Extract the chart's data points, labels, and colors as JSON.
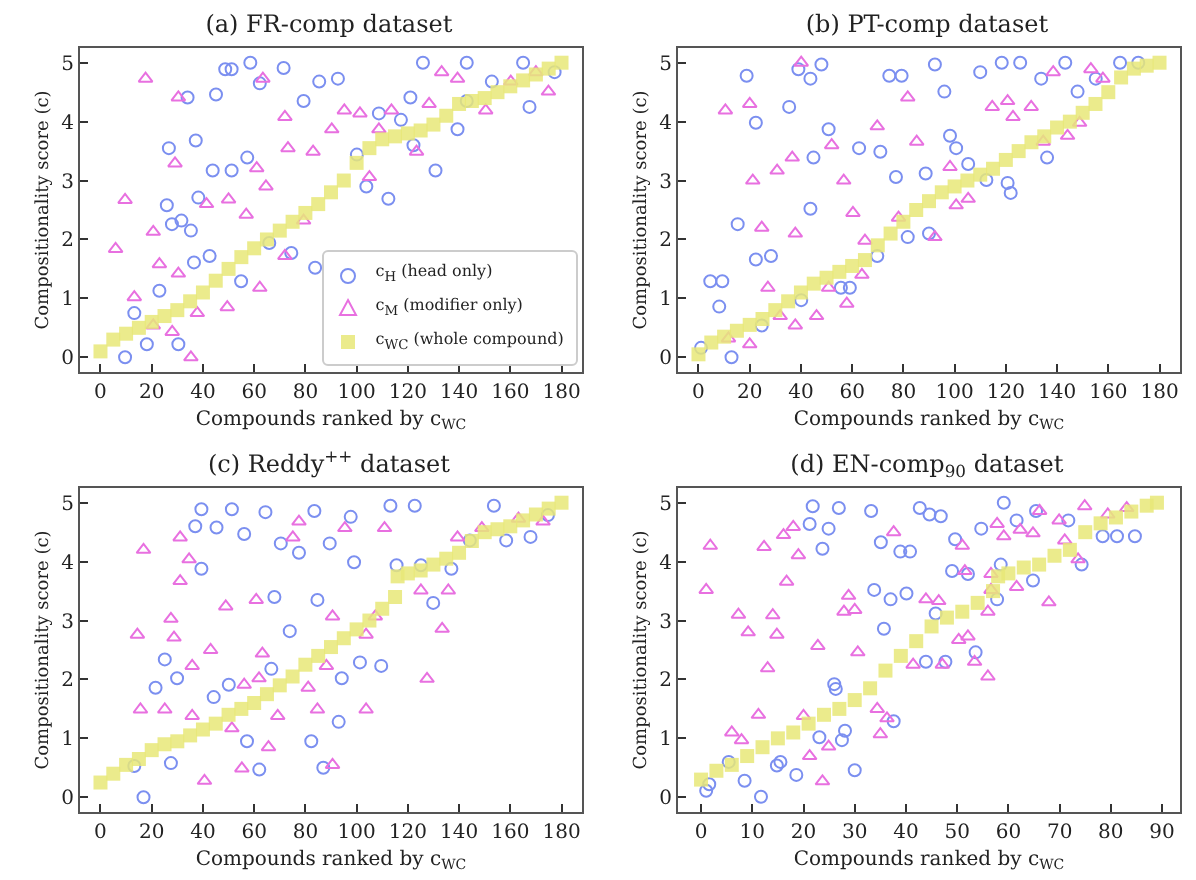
{
  "chart_data": [
    {
      "type": "scatter",
      "title": "(a) FR-comp dataset",
      "xlabel": "Compounds ranked by c$_{WC}$",
      "ylabel": "Compositionality score (c)",
      "xlim": [
        -8,
        188
      ],
      "ylim": [
        -0.25,
        5.25
      ],
      "xticks": [
        0,
        20,
        40,
        60,
        80,
        100,
        120,
        140,
        160,
        180
      ],
      "yticks": [
        0,
        1,
        2,
        3,
        4,
        5
      ],
      "grid": false,
      "legend": "bottom right",
      "series": [
        {
          "name": "c$_{H}$ (head only)",
          "color": "#7b8ff0",
          "marker": "circle",
          "x": [
            48.7,
            51.2,
            58.5,
            62.2,
            71.5,
            79.3,
            85.4,
            92.7,
            34.0,
            45.1,
            26.7,
            37.2,
            43.8,
            51.2,
            57.3,
            25.9,
            38.2,
            27.9,
            31.6,
            35.3,
            23.0,
            36.5,
            42.6,
            65.9,
            74.5,
            83.8,
            18.1,
            9.6,
            13.2,
            30.4,
            54.9,
            108.7,
            117.3,
            122.2,
            130.8,
            112.4,
            103.8,
            100.1,
            143.0,
            152.8,
            167.5,
            177.3,
            165.0,
            143.0,
            125.9,
            139.4,
            121.0
          ],
          "values": [
            4.89,
            4.89,
            5.0,
            4.65,
            4.91,
            4.35,
            4.68,
            4.73,
            4.41,
            4.46,
            3.55,
            3.68,
            3.17,
            3.17,
            3.39,
            2.58,
            2.71,
            2.26,
            2.32,
            2.15,
            1.13,
            1.61,
            1.72,
            1.94,
            1.77,
            1.52,
            0.22,
            0.0,
            0.75,
            0.22,
            1.29,
            4.14,
            4.03,
            3.6,
            3.17,
            2.69,
            2.9,
            3.44,
            4.35,
            4.68,
            4.25,
            4.84,
            5.0,
            5.0,
            5.0,
            3.87,
            4.41
          ]
        },
        {
          "name": "c$_{M}$ (modifier only)",
          "color": "#e870e0",
          "marker": "triangle",
          "x": [
            17.6,
            30.4,
            29.1,
            9.6,
            20.6,
            5.9,
            23.0,
            30.4,
            41.4,
            50.0,
            61.0,
            63.4,
            72.0,
            73.2,
            64.6,
            56.9,
            49.5,
            37.8,
            28.0,
            13.2,
            62.2,
            72.0,
            79.3,
            83.0,
            90.3,
            95.2,
            101.3,
            105.0,
            108.7,
            113.6,
            123.4,
            128.3,
            133.2,
            139.4,
            150.4,
            160.2,
            170.0,
            174.9,
            35.3,
            20.6
          ],
          "values": [
            4.73,
            4.41,
            3.29,
            2.67,
            2.13,
            1.84,
            1.58,
            1.42,
            2.6,
            2.68,
            3.21,
            4.73,
            4.08,
            3.55,
            2.9,
            2.42,
            0.85,
            0.75,
            0.43,
            1.02,
            1.18,
            1.72,
            2.32,
            3.49,
            3.87,
            4.19,
            4.14,
            3.06,
            3.87,
            4.19,
            3.49,
            4.3,
            4.84,
            4.73,
            4.19,
            4.68,
            4.84,
            4.51,
            0.0,
            0.54
          ]
        },
        {
          "name": "c$_{WC}$ (whole compound)",
          "color": "#e8e878",
          "marker": "square",
          "x": [
            0,
            5,
            10,
            15,
            20,
            25,
            30,
            35,
            40,
            45,
            50,
            55,
            60,
            65,
            70,
            75,
            80,
            85,
            90,
            95,
            100,
            105,
            110,
            115,
            120,
            125,
            130,
            135,
            140,
            145,
            150,
            155,
            160,
            165,
            170,
            175,
            180
          ],
          "values": [
            0.1,
            0.3,
            0.4,
            0.5,
            0.6,
            0.7,
            0.8,
            0.95,
            1.1,
            1.3,
            1.5,
            1.7,
            1.85,
            2.0,
            2.15,
            2.3,
            2.45,
            2.6,
            2.8,
            3.0,
            3.3,
            3.55,
            3.7,
            3.75,
            3.8,
            3.85,
            3.95,
            4.1,
            4.3,
            4.35,
            4.4,
            4.5,
            4.6,
            4.7,
            4.8,
            4.9,
            5.0
          ]
        }
      ]
    },
    {
      "type": "scatter",
      "title": "(b) PT-comp dataset",
      "xlabel": "Compounds ranked by c$_{WC}$",
      "ylabel": "Compositionality score (c)",
      "xlim": [
        -8,
        188
      ],
      "ylim": [
        -0.25,
        5.25
      ],
      "xticks": [
        0,
        20,
        40,
        60,
        80,
        100,
        120,
        140,
        160,
        180
      ],
      "yticks": [
        0,
        1,
        2,
        3,
        4,
        5
      ],
      "grid": false,
      "series": [
        {
          "color": "#7b8ff0",
          "marker": "circle",
          "x": [
            18.8,
            22.4,
            39.0,
            43.7,
            48.0,
            35.4,
            50.8,
            62.7,
            44.9,
            71.0,
            74.5,
            79.3,
            92.3,
            96.0,
            88.7,
            77.1,
            43.7,
            15.3,
            22.4,
            28.3,
            4.6,
            9.3,
            8.1,
            24.7,
            40.1,
            55.6,
            59.1,
            69.8,
            81.7,
            90.0,
            100.6,
            98.2,
            105.3,
            112.4,
            120.7,
            121.9,
            118.4,
            125.6,
            110.0,
            133.8,
            143.2,
            148.0,
            136.1,
            155.1,
            164.6,
            171.7,
            1.0,
            12.9
          ],
          "values": [
            4.78,
            3.98,
            4.89,
            4.73,
            4.97,
            4.25,
            3.87,
            3.55,
            3.39,
            3.49,
            4.78,
            4.78,
            4.97,
            4.51,
            3.12,
            3.06,
            2.52,
            2.26,
            1.66,
            1.72,
            1.29,
            1.29,
            0.86,
            0.54,
            0.97,
            1.18,
            1.18,
            1.72,
            2.04,
            2.1,
            3.55,
            3.76,
            3.28,
            3.01,
            2.96,
            2.79,
            5.0,
            5.0,
            4.84,
            4.73,
            5.0,
            4.51,
            3.39,
            4.73,
            5.0,
            5.0,
            0.16,
            0.0
          ]
        },
        {
          "color": "#e870e0",
          "marker": "triangle",
          "x": [
            10.5,
            20.0,
            40.1,
            30.7,
            21.2,
            24.7,
            37.8,
            36.6,
            52.0,
            56.7,
            69.8,
            60.3,
            65.0,
            63.8,
            57.9,
            50.8,
            37.8,
            31.9,
            20.0,
            11.7,
            81.7,
            85.2,
            92.3,
            98.2,
            100.6,
            105.3,
            114.7,
            120.7,
            122.8,
            129.9,
            134.6,
            144.1,
            148.8,
            138.5,
            153.2,
            157.9,
            78.1,
            27.1,
            46.1
          ],
          "values": [
            4.19,
            4.3,
            5.0,
            3.17,
            3.0,
            2.2,
            2.1,
            3.39,
            3.6,
            3.0,
            3.92,
            2.45,
            1.98,
            1.4,
            0.91,
            1.18,
            0.54,
            0.7,
            0.22,
            0.32,
            4.41,
            3.66,
            2.04,
            3.23,
            2.58,
            2.69,
            4.25,
            4.35,
            4.08,
            4.25,
            3.66,
            3.76,
            3.98,
            4.84,
            4.89,
            4.73,
            2.37,
            1.18,
            0.7
          ]
        },
        {
          "color": "#e8e878",
          "marker": "square",
          "x": [
            0,
            5,
            10,
            15,
            20,
            25,
            30,
            35,
            40,
            45,
            50,
            55,
            60,
            65,
            70,
            75,
            80,
            85,
            90,
            95,
            100,
            105,
            110,
            115,
            120,
            125,
            130,
            135,
            140,
            145,
            150,
            155,
            160,
            165,
            170,
            175,
            180
          ],
          "values": [
            0.05,
            0.25,
            0.35,
            0.45,
            0.55,
            0.65,
            0.8,
            0.95,
            1.1,
            1.25,
            1.35,
            1.45,
            1.55,
            1.65,
            1.9,
            2.1,
            2.3,
            2.5,
            2.65,
            2.8,
            2.9,
            3.0,
            3.1,
            3.2,
            3.35,
            3.5,
            3.65,
            3.75,
            3.9,
            4.0,
            4.15,
            4.3,
            4.5,
            4.75,
            4.9,
            4.95,
            5.0
          ]
        }
      ]
    },
    {
      "type": "scatter",
      "title": "(c) Reddy$^{++}$ dataset",
      "xlabel": "Compounds ranked by c$_{WC}$",
      "ylabel": "Compositionality score (c)",
      "xlim": [
        -8,
        188
      ],
      "ylim": [
        -0.25,
        5.25
      ],
      "xticks": [
        0,
        20,
        40,
        60,
        80,
        100,
        120,
        140,
        160,
        180
      ],
      "yticks": [
        0,
        1,
        2,
        3,
        4,
        5
      ],
      "grid": false,
      "series": [
        {
          "color": "#7b8ff0",
          "marker": "circle",
          "x": [
            39.4,
            51.3,
            37.0,
            45.3,
            64.4,
            83.5,
            97.7,
            113.2,
            122.7,
            39.4,
            56.1,
            70.4,
            77.5,
            89.5,
            99.0,
            115.6,
            125.1,
            67.9,
            84.7,
            73.9,
            25.1,
            21.5,
            29.9,
            50.1,
            66.7,
            94.2,
            109.6,
            101.3,
            93.0,
            44.2,
            57.2,
            82.3,
            62.0,
            87.0,
            16.8,
            13.2,
            27.5,
            129.9,
            137.0,
            144.2,
            158.4,
            167.9,
            153.6,
            174.7
          ],
          "values": [
            4.89,
            4.89,
            4.6,
            4.58,
            4.84,
            4.86,
            4.76,
            4.95,
            4.95,
            3.88,
            4.47,
            4.31,
            4.15,
            4.31,
            3.99,
            3.94,
            3.94,
            3.4,
            3.35,
            2.82,
            2.34,
            1.86,
            2.02,
            1.91,
            2.18,
            2.02,
            2.23,
            2.29,
            1.28,
            1.7,
            0.95,
            0.95,
            0.47,
            0.5,
            0.0,
            0.53,
            0.58,
            3.3,
            3.88,
            4.36,
            4.36,
            4.42,
            4.95,
            4.79
          ]
        },
        {
          "color": "#e870e0",
          "marker": "triangle",
          "x": [
            16.8,
            31.1,
            34.6,
            77.5,
            75.1,
            95.4,
            110.9,
            31.1,
            48.9,
            60.8,
            14.4,
            27.5,
            28.7,
            43.0,
            63.2,
            35.8,
            56.1,
            61.9,
            81.1,
            88.2,
            90.6,
            103.7,
            107.3,
            15.6,
            25.1,
            35.8,
            69.2,
            84.7,
            103.7,
            51.3,
            65.6,
            40.6,
            55.2,
            90.6,
            125.1,
            133.4,
            135.8,
            127.5,
            139.4,
            148.9,
            163.2,
            172.8
          ],
          "values": [
            4.2,
            4.41,
            4.04,
            4.68,
            4.41,
            4.57,
            4.57,
            3.67,
            3.24,
            3.35,
            2.76,
            3.03,
            2.71,
            2.5,
            2.44,
            2.23,
            1.91,
            2.02,
            1.86,
            2.23,
            3.07,
            2.76,
            3.07,
            1.49,
            1.49,
            1.38,
            1.38,
            1.49,
            1.49,
            1.17,
            0.85,
            0.28,
            0.49,
            0.55,
            3.51,
            2.86,
            3.51,
            2.01,
            4.41,
            4.57,
            4.73,
            4.68
          ]
        },
        {
          "color": "#e8e878",
          "marker": "square",
          "x": [
            0,
            5,
            10,
            15,
            20,
            25,
            30,
            35,
            40,
            45,
            50,
            55,
            60,
            65,
            70,
            75,
            80,
            85,
            90,
            95,
            100,
            105,
            110,
            115,
            116,
            120,
            125,
            130,
            135,
            140,
            145,
            150,
            155,
            160,
            165,
            170,
            175,
            180
          ],
          "values": [
            0.25,
            0.4,
            0.55,
            0.65,
            0.8,
            0.9,
            0.95,
            1.05,
            1.15,
            1.25,
            1.4,
            1.5,
            1.6,
            1.75,
            1.9,
            2.05,
            2.25,
            2.4,
            2.55,
            2.7,
            2.85,
            3.0,
            3.2,
            3.4,
            3.75,
            3.8,
            3.85,
            3.95,
            4.05,
            4.15,
            4.35,
            4.5,
            4.55,
            4.6,
            4.7,
            4.8,
            4.9,
            5.0
          ]
        }
      ]
    },
    {
      "type": "scatter",
      "title": "(d) EN-comp$_{90}$ dataset",
      "xlabel": "Compounds ranked by c$_{WC}$",
      "ylabel": "Compositionality score (c)",
      "xlim": [
        -4.5,
        93.5
      ],
      "ylim": [
        -0.25,
        5.25
      ],
      "xticks": [
        0,
        10,
        20,
        30,
        40,
        50,
        60,
        70,
        80,
        90
      ],
      "yticks": [
        0,
        1,
        2,
        3,
        4,
        5
      ],
      "grid": false,
      "series": [
        {
          "color": "#7b8ff0",
          "marker": "circle",
          "x": [
            21.8,
            26.9,
            33.2,
            42.7,
            44.6,
            46.8,
            59.1,
            65.4,
            21.2,
            24.9,
            54.7,
            61.6,
            71.7,
            78.4,
            81.2,
            84.7,
            49.6,
            38.9,
            40.8,
            35.1,
            23.7,
            52.1,
            49.0,
            58.5,
            64.8,
            74.3,
            33.8,
            37.0,
            40.1,
            45.8,
            35.7,
            57.8,
            53.6,
            47.7,
            43.9,
            26.0,
            26.3,
            37.6,
            28.1,
            23.1,
            27.5,
            30.0,
            15.5,
            18.6,
            14.8,
            8.5,
            11.7,
            1.0,
            1.6,
            5.4
          ],
          "values": [
            4.94,
            4.91,
            4.86,
            4.91,
            4.8,
            4.77,
            5.0,
            4.86,
            4.64,
            4.56,
            4.56,
            4.7,
            4.7,
            4.43,
            4.43,
            4.43,
            4.38,
            4.17,
            4.17,
            4.33,
            4.22,
            3.79,
            3.84,
            3.95,
            3.68,
            3.95,
            3.52,
            3.36,
            3.46,
            3.12,
            2.86,
            3.36,
            2.46,
            2.3,
            2.3,
            1.92,
            1.84,
            1.29,
            1.13,
            1.02,
            0.97,
            0.46,
            0.6,
            0.38,
            0.54,
            0.28,
            0.01,
            0.11,
            0.22,
            0.6
          ]
        },
        {
          "color": "#e870e0",
          "marker": "triangle",
          "x": [
            1.8,
            1.0,
            7.3,
            9.2,
            12.3,
            13.0,
            14.0,
            14.8,
            16.1,
            18.0,
            19.0,
            16.7,
            22.8,
            28.8,
            27.9,
            30.0,
            30.6,
            37.6,
            43.9,
            46.4,
            41.4,
            47.1,
            50.3,
            52.1,
            53.4,
            56.0,
            51.5,
            51.0,
            56.6,
            56.0,
            56.6,
            57.8,
            59.1,
            62.3,
            64.8,
            61.6,
            67.9,
            66.1,
            69.9,
            74.9,
            73.6,
            71.0,
            79.4,
            83.1,
            11.2,
            20.0,
            6.0,
            7.9,
            21.2,
            23.7,
            34.4,
            24.9,
            35.0,
            36.3
          ],
          "values": [
            4.27,
            3.52,
            3.1,
            2.8,
            4.25,
            2.19,
            3.09,
            2.76,
            4.45,
            4.59,
            4.11,
            3.66,
            2.57,
            3.42,
            3.15,
            3.18,
            2.46,
            4.5,
            3.36,
            3.33,
            2.25,
            2.25,
            2.67,
            2.73,
            2.3,
            2.05,
            3.84,
            4.27,
            3.52,
            3.15,
            3.79,
            4.64,
            4.43,
            4.54,
            4.48,
            3.57,
            3.31,
            4.86,
            4.7,
            4.94,
            4.04,
            4.36,
            4.8,
            4.91,
            1.4,
            1.38,
            1.1,
            0.97,
            0.7,
            0.27,
            1.5,
            0.86,
            1.07,
            1.34
          ]
        },
        {
          "color": "#e8e878",
          "marker": "square",
          "x": [
            0,
            3,
            6,
            9,
            12,
            15,
            18,
            21,
            24,
            27,
            30,
            33,
            36,
            39,
            42,
            45,
            48,
            51,
            54,
            57,
            58,
            60,
            63,
            66,
            69,
            72,
            75,
            78,
            81,
            84,
            87,
            89
          ],
          "values": [
            0.3,
            0.45,
            0.55,
            0.7,
            0.85,
            1.0,
            1.1,
            1.25,
            1.4,
            1.5,
            1.65,
            1.85,
            2.15,
            2.4,
            2.65,
            2.9,
            3.05,
            3.15,
            3.3,
            3.5,
            3.75,
            3.8,
            3.9,
            3.95,
            4.1,
            4.2,
            4.5,
            4.65,
            4.75,
            4.85,
            4.95,
            5.0
          ]
        }
      ]
    }
  ]
}
